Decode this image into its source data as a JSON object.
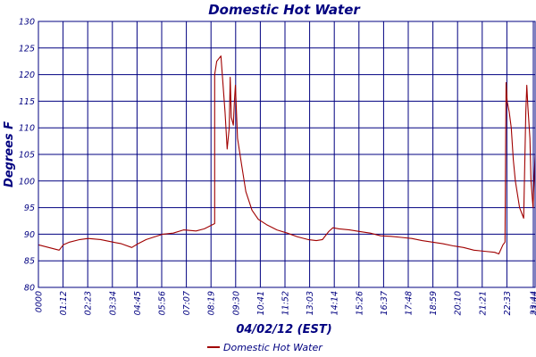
{
  "chart_data": {
    "type": "line",
    "title": "Domestic Hot Water",
    "xlabel": "04/02/12 (EST)",
    "ylabel": "Degrees F",
    "ylim": [
      80,
      130
    ],
    "yticks": [
      "80",
      "85",
      "90",
      "95",
      "100",
      "105",
      "110",
      "115",
      "120",
      "125",
      "130"
    ],
    "xticks": [
      "0000",
      "01:12",
      "02:23",
      "03:34",
      "04:45",
      "05:56",
      "07:07",
      "08:19",
      "09:30",
      "10:41",
      "11:52",
      "13:03",
      "14:14",
      "15:26",
      "16:37",
      "17:48",
      "18:59",
      "20:10",
      "21:21",
      "22:33",
      "23:44",
      "23:44"
    ],
    "grid": true,
    "legend_position": "bottom",
    "series": [
      {
        "name": "Domestic Hot Water",
        "color": "#a00000",
        "x_hours": [
          0.0,
          0.5,
          1.0,
          1.2,
          1.5,
          2.0,
          2.4,
          3.0,
          3.6,
          4.0,
          4.5,
          4.8,
          5.2,
          5.6,
          6.0,
          6.5,
          7.0,
          7.6,
          8.0,
          8.5,
          8.5,
          8.6,
          8.8,
          9.0,
          9.1,
          9.2,
          9.25,
          9.3,
          9.4,
          9.45,
          9.5,
          9.6,
          9.8,
          10.0,
          10.3,
          10.6,
          11.0,
          11.5,
          12.0,
          12.5,
          13.0,
          13.4,
          13.7,
          14.0,
          14.2,
          14.5,
          15.0,
          15.5,
          16.0,
          16.5,
          17.0,
          17.5,
          18.0,
          18.5,
          19.0,
          19.5,
          20.0,
          20.5,
          21.0,
          21.5,
          22.0,
          22.2,
          22.4,
          22.5,
          22.55,
          22.6,
          22.7,
          22.8,
          22.9,
          23.0,
          23.2,
          23.4,
          23.5,
          23.55,
          23.6,
          23.7,
          23.75,
          23.85,
          23.95
        ],
        "y": [
          88,
          87.5,
          87,
          88,
          88.5,
          89,
          89.2,
          89,
          88.5,
          88.2,
          87.5,
          88.2,
          89,
          89.5,
          90,
          90.2,
          90.8,
          90.6,
          91,
          92,
          120,
          122.5,
          123.5,
          113,
          106,
          110,
          119.5,
          112,
          110.5,
          115,
          118,
          108,
          103,
          98,
          94.5,
          92.8,
          91.8,
          90.8,
          90.2,
          89.5,
          89,
          88.8,
          89,
          90.5,
          91.2,
          91,
          90.8,
          90.5,
          90.2,
          89.7,
          89.6,
          89.4,
          89.2,
          88.8,
          88.5,
          88.2,
          87.8,
          87.5,
          87,
          86.8,
          86.6,
          86.3,
          88,
          88.5,
          118.5,
          115,
          113,
          110,
          104,
          100,
          95,
          93,
          113,
          118,
          114,
          108,
          100,
          95,
          105
        ]
      }
    ]
  }
}
